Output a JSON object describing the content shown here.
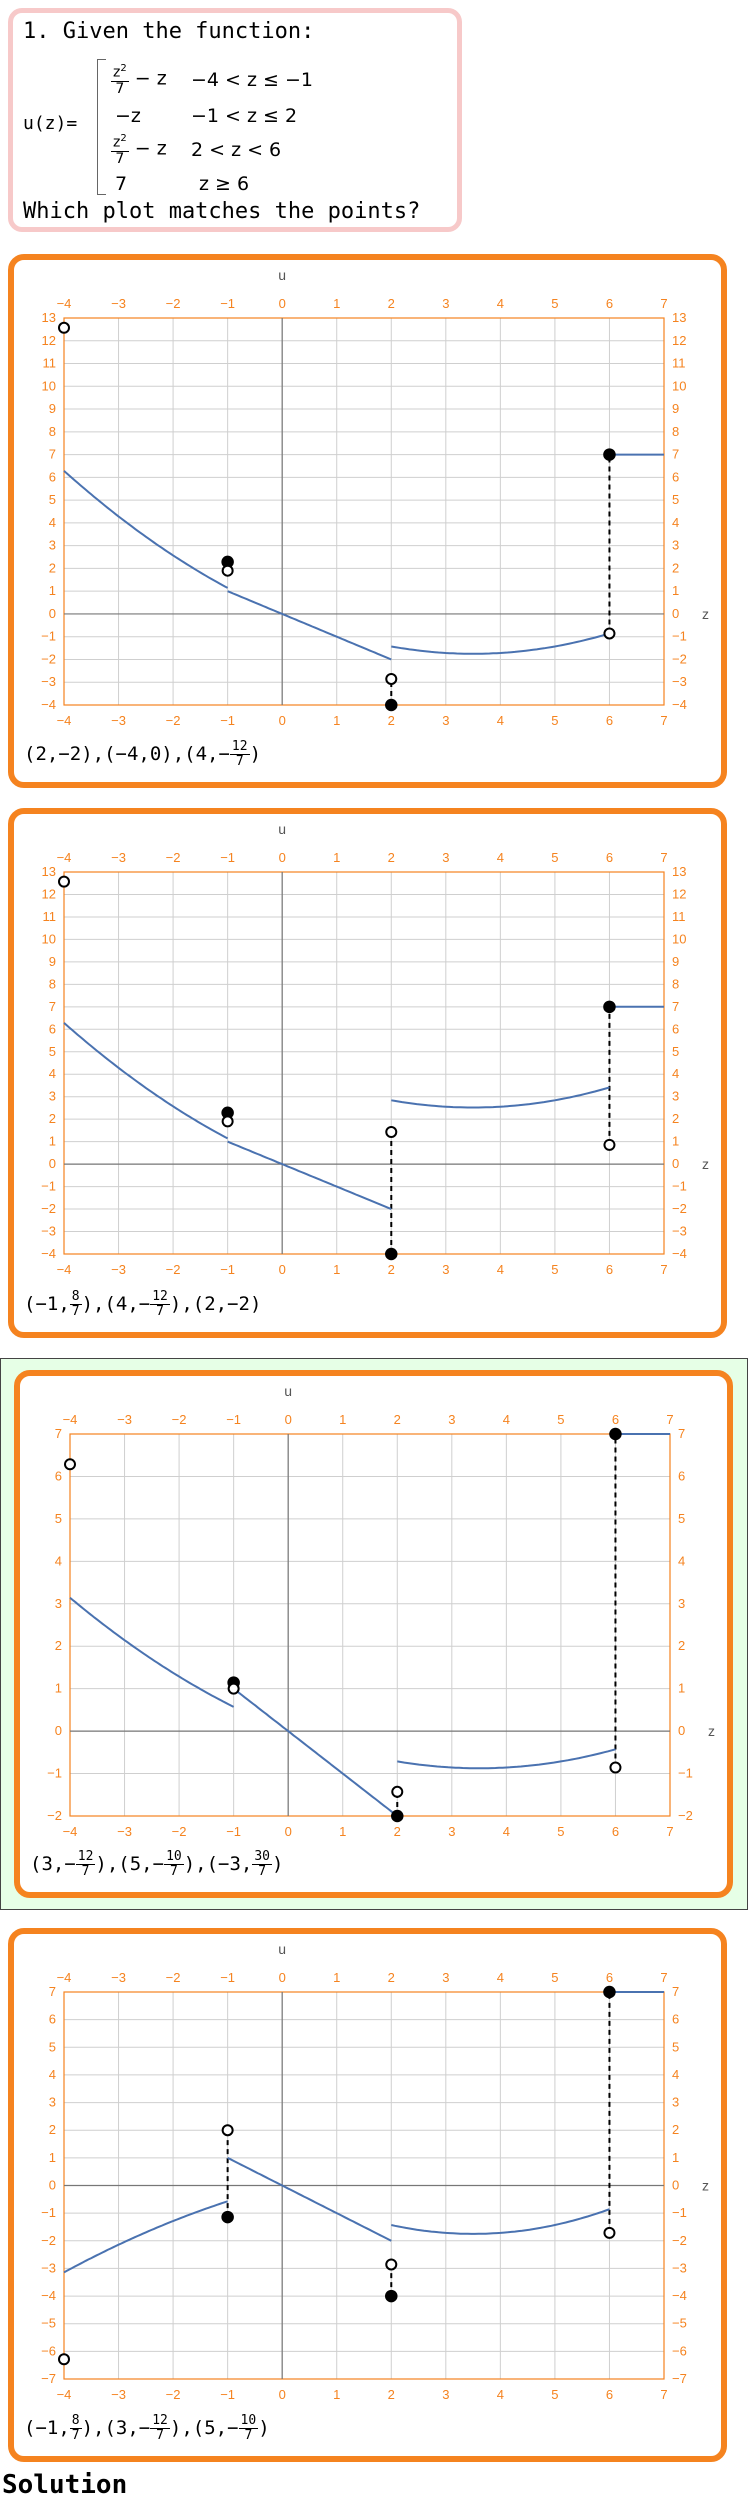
{
  "question": {
    "title": "1. Given the function:",
    "fn_label": "u(z)=",
    "pieces": [
      {
        "expr_num": "z",
        "expr_sup": "2",
        "expr_den": "7",
        "expr_tail": "− z",
        "cond": "−4 < z ≤ −1"
      },
      {
        "expr_text": "−z",
        "cond": "−1 < z ≤ 2"
      },
      {
        "expr_num": "z",
        "expr_sup": "2",
        "expr_den": "7",
        "expr_tail": "− z",
        "cond": "2 < z < 6"
      },
      {
        "expr_text": "7",
        "cond": "z ≥ 6"
      }
    ],
    "ask": "Which plot matches the points?"
  },
  "choices": [
    {
      "points_parts": [
        {
          "t": "(2,−2),(−4,0),(4,−"
        },
        {
          "num": "12",
          "den": "7"
        },
        {
          "t": ")"
        }
      ],
      "chart_data": {
        "type": "line",
        "xlabel": "z",
        "ylabel": "u",
        "xlim": [
          -4,
          7
        ],
        "ylim": [
          -4,
          13
        ],
        "x_ticks": [
          -4,
          -3,
          -2,
          -1,
          0,
          1,
          2,
          3,
          4,
          5,
          6,
          7
        ],
        "y_ticks": [
          -4,
          -3,
          -2,
          -1,
          0,
          1,
          2,
          3,
          4,
          5,
          6,
          7,
          8,
          9,
          10,
          11,
          12,
          13
        ],
        "grid": true,
        "curves": [
          {
            "f": "z2_over7_minus_z",
            "from": -4,
            "to": -1
          },
          {
            "f": "neg_z",
            "from": -1,
            "to": 2
          },
          {
            "f": "z2_over7_minus_z",
            "from": 2,
            "to": 6
          },
          {
            "f": "const7",
            "from": 6,
            "to": 7
          }
        ],
        "open_points": [
          [
            -4,
            12.571
          ],
          [
            -1,
            1.9
          ],
          [
            2,
            -2.857
          ],
          [
            6,
            -0.857
          ]
        ],
        "closed_points": [
          [
            -1,
            2.286
          ],
          [
            2,
            -4
          ],
          [
            6,
            7
          ]
        ],
        "dashed": [
          [
            2,
            -4,
            2,
            -2.857
          ],
          [
            6,
            -0.857,
            6,
            7
          ]
        ]
      }
    },
    {
      "points_parts": [
        {
          "t": "(−1,"
        },
        {
          "num": "8",
          "den": "7"
        },
        {
          "t": "),(4,−"
        },
        {
          "num": "12",
          "den": "7"
        },
        {
          "t": "),(2,−2)"
        }
      ],
      "chart_data": {
        "type": "line",
        "xlabel": "z",
        "ylabel": "u",
        "xlim": [
          -4,
          7
        ],
        "ylim": [
          -4,
          13
        ],
        "x_ticks": [
          -4,
          -3,
          -2,
          -1,
          0,
          1,
          2,
          3,
          4,
          5,
          6,
          7
        ],
        "y_ticks": [
          -4,
          -3,
          -2,
          -1,
          0,
          1,
          2,
          3,
          4,
          5,
          6,
          7,
          8,
          9,
          10,
          11,
          12,
          13
        ],
        "grid": true,
        "curves": [
          {
            "f": "z2_over7_minus_z",
            "from": -4,
            "to": -1
          },
          {
            "f": "neg_z",
            "from": -1,
            "to": 2
          },
          {
            "f": "shifted_mid",
            "from": 2,
            "to": 6
          },
          {
            "f": "const7",
            "from": 6,
            "to": 7
          }
        ],
        "open_points": [
          [
            -4,
            12.571
          ],
          [
            -1,
            1.9
          ],
          [
            2,
            1.43
          ],
          [
            6,
            0.857
          ]
        ],
        "closed_points": [
          [
            -1,
            2.286
          ],
          [
            2,
            -4
          ],
          [
            6,
            7
          ]
        ],
        "dashed": [
          [
            2,
            -4,
            2,
            1.43
          ],
          [
            6,
            0.857,
            6,
            7
          ]
        ]
      }
    },
    {
      "points_parts": [
        {
          "t": "(3,−"
        },
        {
          "num": "12",
          "den": "7"
        },
        {
          "t": "),(5,−"
        },
        {
          "num": "10",
          "den": "7"
        },
        {
          "t": "),(−3,"
        },
        {
          "num": "30",
          "den": "7"
        },
        {
          "t": ")"
        }
      ],
      "chart_data": {
        "type": "line",
        "xlabel": "z",
        "ylabel": "u",
        "xlim": [
          -4,
          7
        ],
        "ylim": [
          -2,
          7
        ],
        "x_ticks": [
          -4,
          -3,
          -2,
          -1,
          0,
          1,
          2,
          3,
          4,
          5,
          6,
          7
        ],
        "y_ticks": [
          -2,
          -1,
          0,
          1,
          2,
          3,
          4,
          5,
          6,
          7
        ],
        "grid": true,
        "curves": [
          {
            "f": "scaled_left",
            "from": -4,
            "to": -1
          },
          {
            "f": "neg_z",
            "from": -1,
            "to": 2
          },
          {
            "f": "scaled_mid",
            "from": 2,
            "to": 6
          },
          {
            "f": "const7",
            "from": 6,
            "to": 7
          }
        ],
        "open_points": [
          [
            -4,
            6.286
          ],
          [
            -1,
            1.0
          ],
          [
            2,
            -1.43
          ],
          [
            6,
            -0.857
          ]
        ],
        "closed_points": [
          [
            -1,
            1.143
          ],
          [
            2,
            -2
          ],
          [
            6,
            7
          ]
        ],
        "dashed": [
          [
            2,
            -2,
            2,
            -1.43
          ],
          [
            6,
            -0.857,
            6,
            7
          ]
        ]
      }
    },
    {
      "points_parts": [
        {
          "t": "(−1,"
        },
        {
          "num": "8",
          "den": "7"
        },
        {
          "t": "),(3,−"
        },
        {
          "num": "12",
          "den": "7"
        },
        {
          "t": "),(5,−"
        },
        {
          "num": "10",
          "den": "7"
        },
        {
          "t": ")"
        }
      ],
      "chart_data": {
        "type": "line",
        "xlabel": "z",
        "ylabel": "u",
        "xlim": [
          -4,
          7
        ],
        "ylim": [
          -7,
          7
        ],
        "x_ticks": [
          -4,
          -3,
          -2,
          -1,
          0,
          1,
          2,
          3,
          4,
          5,
          6,
          7
        ],
        "y_ticks": [
          -7,
          -6,
          -5,
          -4,
          -3,
          -2,
          -1,
          0,
          1,
          2,
          3,
          4,
          5,
          6,
          7
        ],
        "grid": true,
        "curves": [
          {
            "f": "neg_left",
            "from": -4,
            "to": -1
          },
          {
            "f": "neg_z",
            "from": -1,
            "to": 2
          },
          {
            "f": "z2_over7_minus_z",
            "from": 2,
            "to": 6
          },
          {
            "f": "const7",
            "from": 6,
            "to": 7
          }
        ],
        "open_points": [
          [
            -4,
            -6.286
          ],
          [
            -1,
            2.0
          ],
          [
            2,
            -2.857
          ],
          [
            6,
            -1.714
          ]
        ],
        "closed_points": [
          [
            -1,
            -1.143
          ],
          [
            2,
            -4
          ],
          [
            6,
            7
          ]
        ],
        "dashed": [
          [
            -1,
            -1.143,
            -1,
            2.0
          ],
          [
            2,
            -4,
            2,
            -2.857
          ],
          [
            6,
            -1.714,
            6,
            7
          ]
        ]
      }
    }
  ],
  "solution_label": "Solution",
  "colors": {
    "accent": "#f5831f",
    "curve": "#4a72b0",
    "grid": "#cfcfcf",
    "correct_bg": "#e6ffe6",
    "question_border": "#f7c9c9"
  }
}
